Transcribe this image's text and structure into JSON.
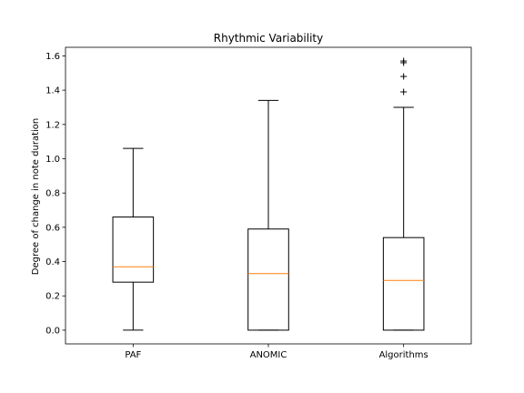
{
  "chart_data": {
    "type": "boxplot",
    "title": "Rhythmic Variability",
    "xlabel": "",
    "ylabel": "Degree of change in note duration",
    "ylim": [
      -0.08,
      1.65
    ],
    "yticks": [
      0.0,
      0.2,
      0.4,
      0.6,
      0.8,
      1.0,
      1.2,
      1.4,
      1.6
    ],
    "ytick_labels": [
      "0.0",
      "0.2",
      "0.4",
      "0.6",
      "0.8",
      "1.0",
      "1.2",
      "1.4",
      "1.6"
    ],
    "grid": false,
    "categories": [
      "PAF",
      "ANOMIC",
      "Algorithms"
    ],
    "boxes": [
      {
        "name": "PAF",
        "whisker_low": 0.0,
        "q1": 0.28,
        "median": 0.37,
        "q3": 0.66,
        "whisker_high": 1.06,
        "fliers": []
      },
      {
        "name": "ANOMIC",
        "whisker_low": 0.0,
        "q1": 0.0,
        "median": 0.33,
        "q3": 0.59,
        "whisker_high": 1.34,
        "fliers": []
      },
      {
        "name": "Algorithms",
        "whisker_low": 0.0,
        "q1": 0.0,
        "median": 0.29,
        "q3": 0.54,
        "whisker_high": 1.3,
        "fliers": [
          1.39,
          1.48,
          1.56,
          1.57
        ]
      }
    ],
    "colors": {
      "box": "#000000",
      "median": "#ff7f0e",
      "flier": "#000000"
    }
  }
}
